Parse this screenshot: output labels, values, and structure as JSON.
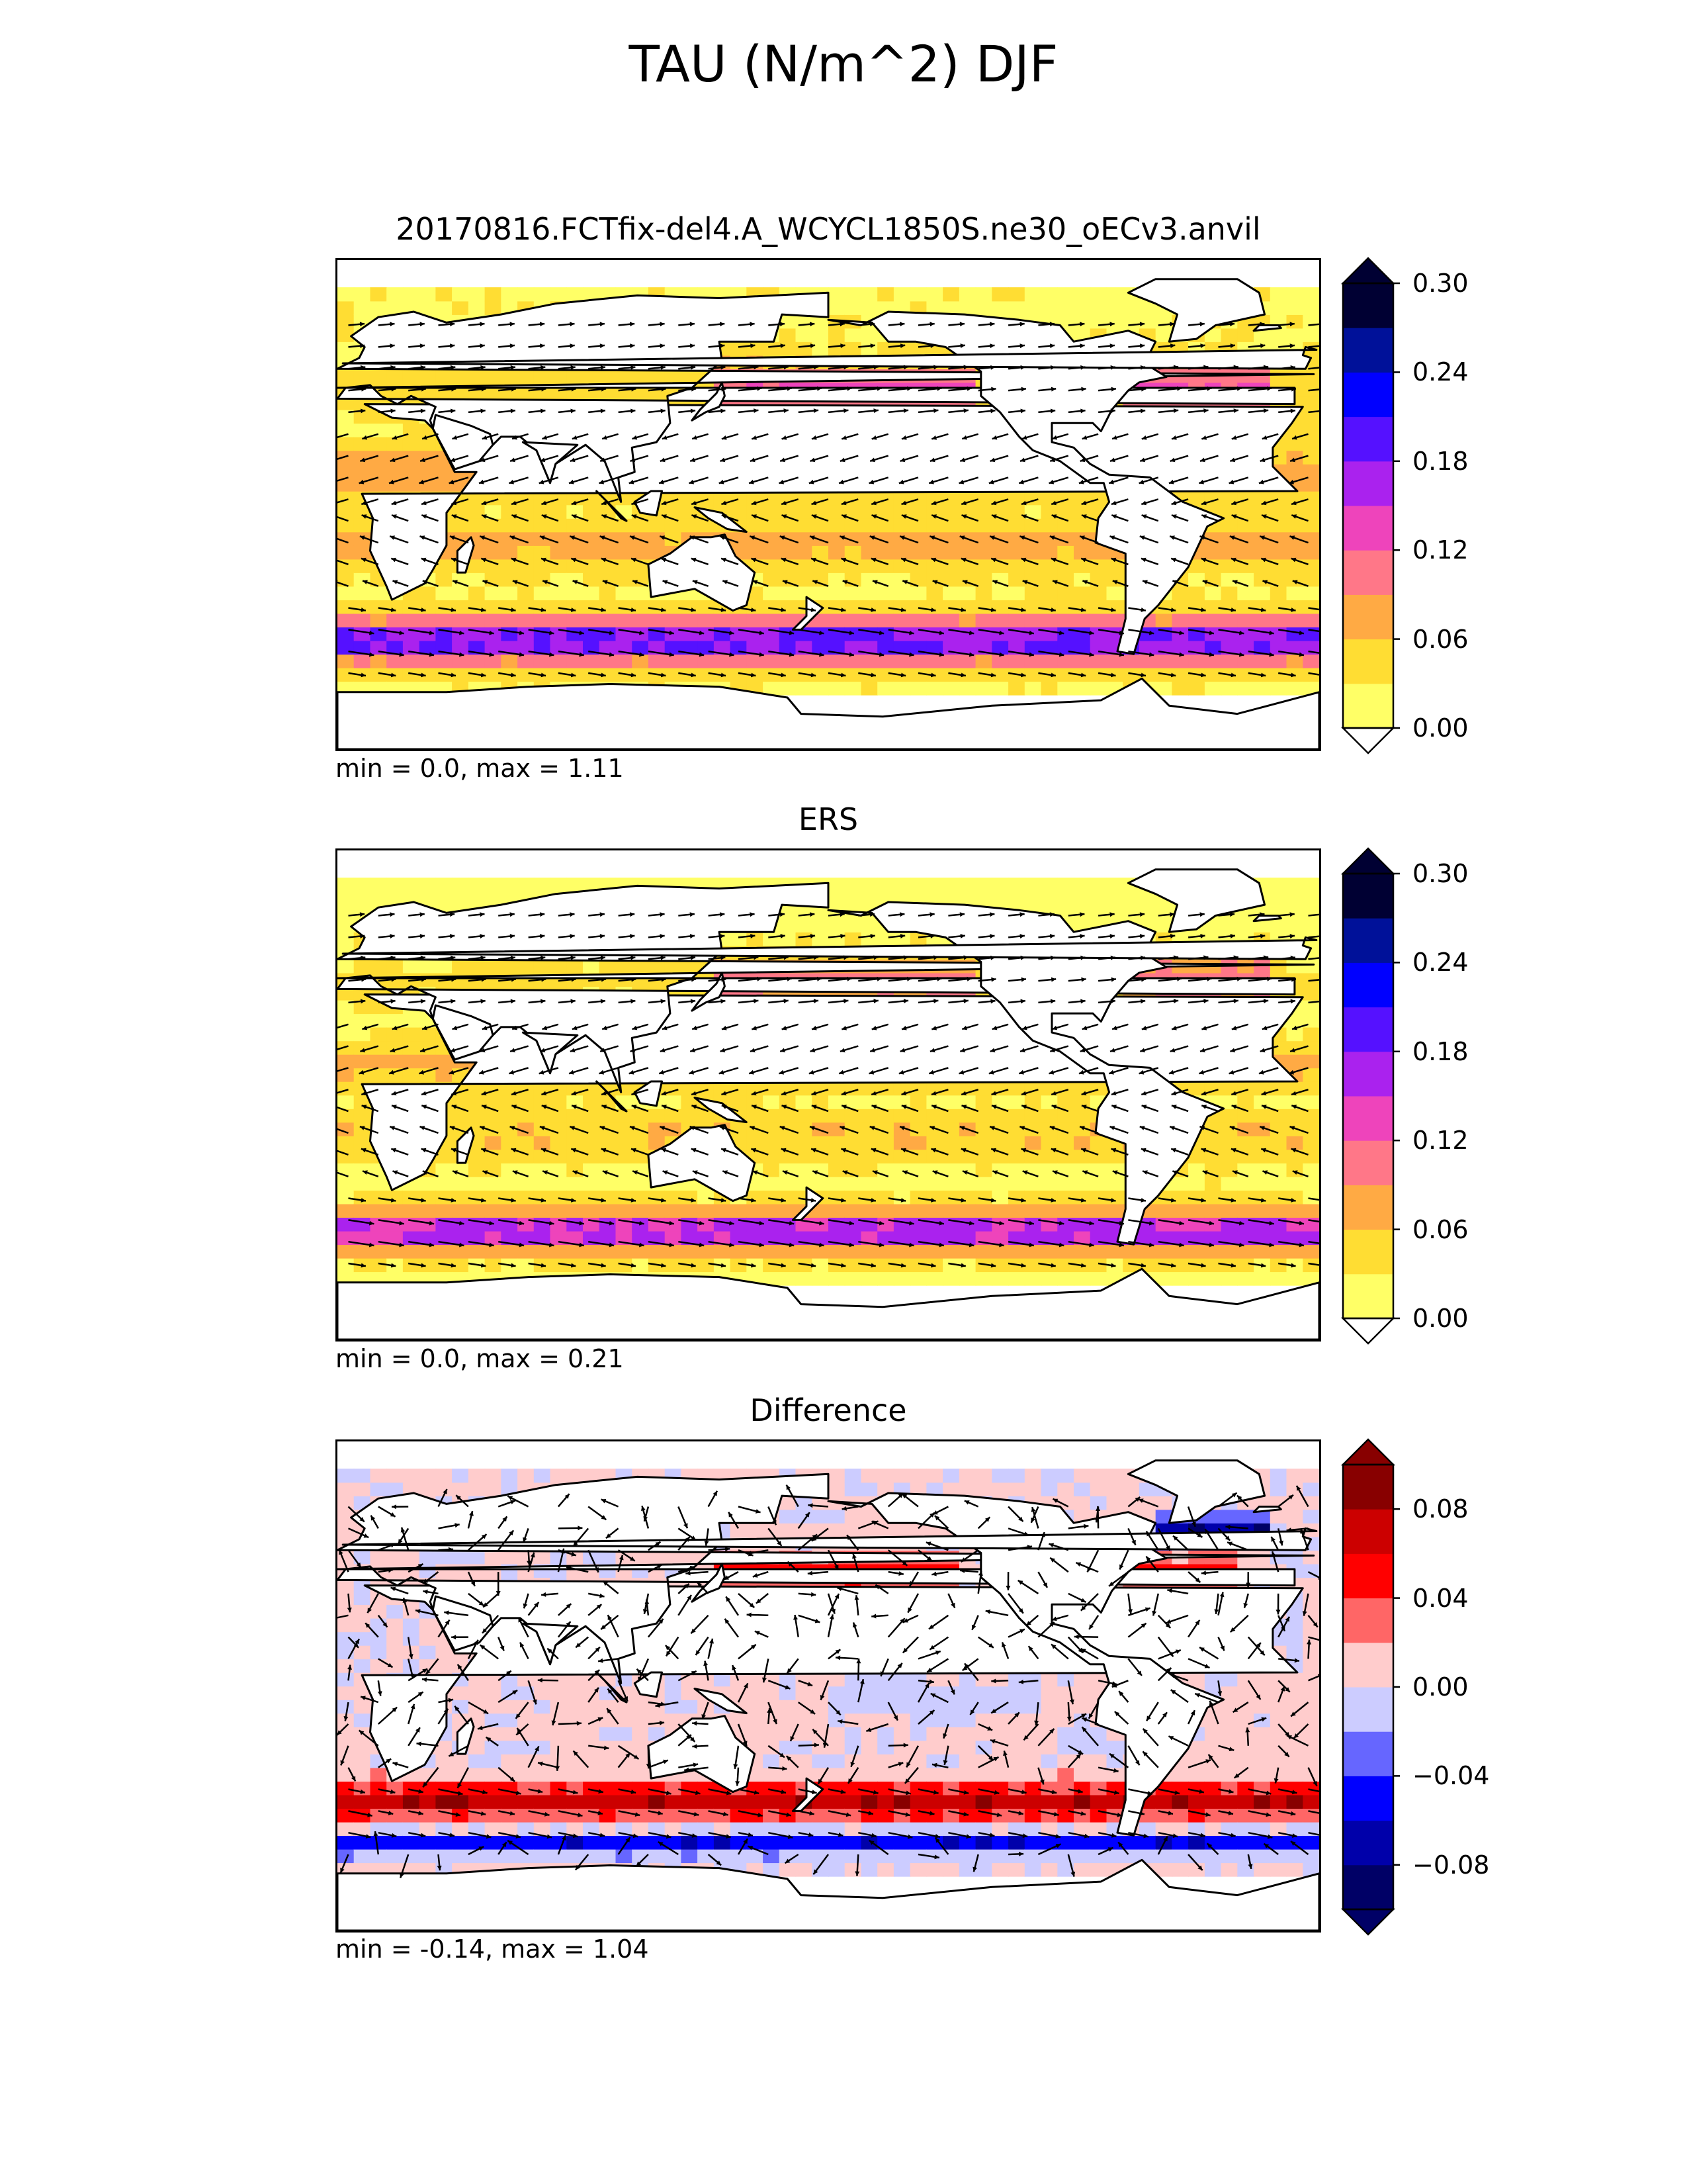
{
  "figure": {
    "title": "TAU (N/m^2) DJF"
  },
  "chart_data": [
    {
      "type": "heatmap",
      "title": "20170816.FCTfix-del4.A_WCYCL1850S.ne30_oECv3.anvil",
      "stats": "min = 0.0, max = 1.11",
      "overlay": "wind stress vectors",
      "colorbar": {
        "levels": [
          0.0,
          0.03,
          0.06,
          0.09,
          0.12,
          0.15,
          0.18,
          0.21,
          0.24,
          0.27,
          0.3
        ],
        "tick_labels": [
          "0.30",
          "0.24",
          "0.18",
          "0.12",
          "0.06",
          "0.00"
        ],
        "colors": [
          "#ffff66",
          "#ffdd33",
          "#ffaa44",
          "#ff7788",
          "#ee44bb",
          "#aa22ee",
          "#5511ff",
          "#0000ff",
          "#001199",
          "#000033"
        ],
        "extend": "both"
      }
    },
    {
      "type": "heatmap",
      "title": "ERS",
      "stats": "min = 0.0, max = 0.21",
      "overlay": "wind stress vectors",
      "colorbar": {
        "levels": [
          0.0,
          0.03,
          0.06,
          0.09,
          0.12,
          0.15,
          0.18,
          0.21,
          0.24,
          0.27,
          0.3
        ],
        "tick_labels": [
          "0.30",
          "0.24",
          "0.18",
          "0.12",
          "0.06",
          "0.00"
        ],
        "colors": [
          "#ffff66",
          "#ffdd33",
          "#ffaa44",
          "#ff7788",
          "#ee44bb",
          "#aa22ee",
          "#5511ff",
          "#0000ff",
          "#001199",
          "#000033"
        ],
        "extend": "both"
      }
    },
    {
      "type": "heatmap",
      "title": "Difference",
      "stats": "min = -0.14, max = 1.04",
      "overlay": "wind stress difference vectors",
      "colorbar": {
        "levels": [
          -0.1,
          -0.08,
          -0.06,
          -0.04,
          -0.02,
          0.0,
          0.02,
          0.04,
          0.06,
          0.08,
          0.1
        ],
        "tick_labels": [
          "0.08",
          "0.04",
          "0.00",
          "−0.04",
          "−0.08"
        ],
        "colors": [
          "#000066",
          "#0000aa",
          "#0000ff",
          "#6666ff",
          "#ccccff",
          "#ffcccc",
          "#ff6666",
          "#ff0000",
          "#cc0000",
          "#880000"
        ],
        "extend": "both"
      }
    }
  ]
}
